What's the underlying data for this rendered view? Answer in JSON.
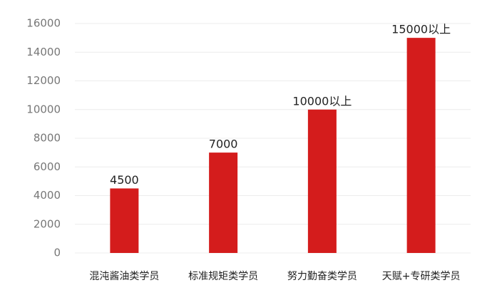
{
  "chart_data": {
    "type": "bar",
    "categories": [
      "混沌酱油类学员",
      "标准规矩类学员",
      "努力勤奋类学员",
      "天赋+专研类学员"
    ],
    "values": [
      4500,
      7000,
      10000,
      15000
    ],
    "value_labels": [
      "4500",
      "7000",
      "10000以上",
      "15000以上"
    ],
    "color": "#d41c1c",
    "ylim": [
      0,
      16000
    ],
    "yticks": [
      0,
      2000,
      4000,
      6000,
      8000,
      10000,
      12000,
      14000,
      16000
    ],
    "grid": true
  }
}
